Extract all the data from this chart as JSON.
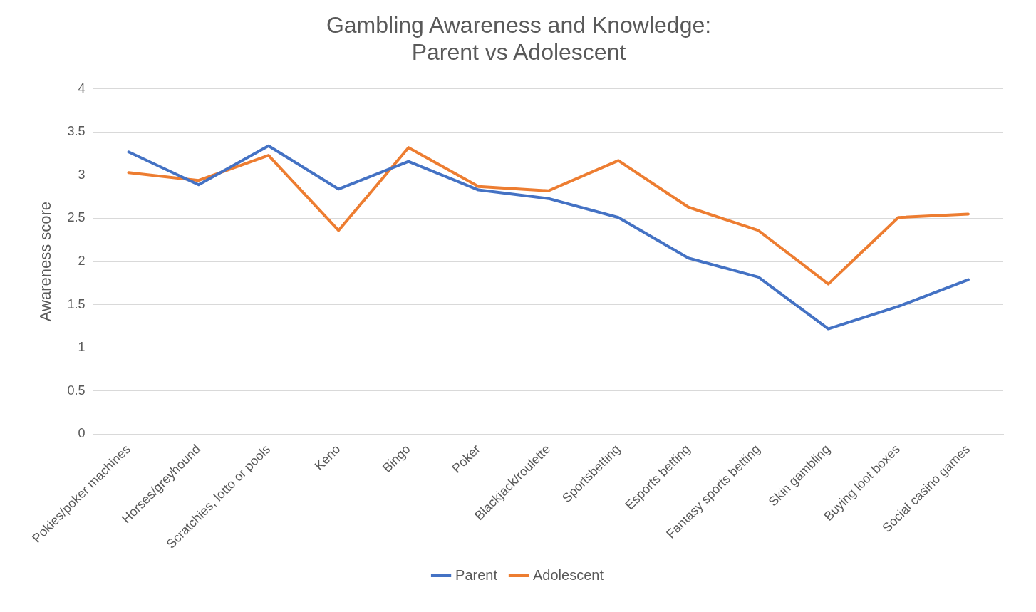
{
  "chart_data": {
    "type": "line",
    "title": [
      "Gambling Awareness and Knowledge:",
      "Parent vs Adolescent"
    ],
    "ylabel": "Awareness score",
    "categories": [
      "Pokies/poker machines",
      "Horses/greyhound",
      "Scratchies, lotto or pools",
      "Keno",
      "Bingo",
      "Poker",
      "Blackjack/roulette",
      "Sportsbetting",
      "Esports betting",
      "Fantasy sports betting",
      "Skin gambling",
      "Buying loot boxes",
      "Social casino games"
    ],
    "series": [
      {
        "name": "Parent",
        "color": "#4472c4",
        "values": [
          3.27,
          2.89,
          3.34,
          2.84,
          3.16,
          2.83,
          2.73,
          2.51,
          2.04,
          1.82,
          1.22,
          1.48,
          1.79
        ]
      },
      {
        "name": "Adolescent",
        "color": "#ed7d31",
        "values": [
          3.03,
          2.94,
          3.23,
          2.36,
          3.32,
          2.87,
          2.82,
          3.17,
          2.63,
          2.36,
          1.74,
          2.51,
          2.55
        ]
      }
    ],
    "ylim": [
      0,
      4
    ],
    "yticks": [
      0,
      0.5,
      1,
      1.5,
      2,
      2.5,
      3,
      3.5,
      4
    ],
    "grid": "y",
    "legend": "bottom",
    "marker": "none",
    "line_style": "solid"
  }
}
